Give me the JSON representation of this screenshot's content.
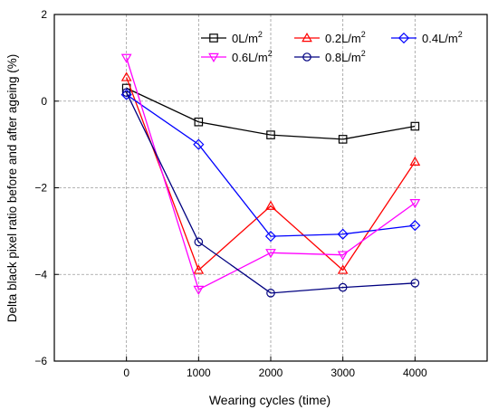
{
  "chart_data": {
    "type": "line",
    "xlabel": "Wearing cycles (time)",
    "ylabel": "Delta black pixel ratio before and after ageing (%)",
    "xlim": [
      -1000,
      5000
    ],
    "ylim": [
      -6,
      2
    ],
    "x_ticks": [
      0,
      1000,
      2000,
      3000,
      4000
    ],
    "y_ticks": [
      2,
      0,
      -2,
      -4,
      -6
    ],
    "grid": true,
    "legend_position": "top",
    "x": [
      0,
      1000,
      2000,
      3000,
      4000
    ],
    "series": [
      {
        "name": "0L/m",
        "sup": "2",
        "color": "#000000",
        "marker": "square",
        "values": [
          0.3,
          -0.48,
          -0.78,
          -0.88,
          -0.58
        ]
      },
      {
        "name": "0.2L/m",
        "sup": "2",
        "color": "#ff0000",
        "marker": "triangle-up",
        "values": [
          0.55,
          -3.9,
          -2.42,
          -3.9,
          -1.4
        ]
      },
      {
        "name": "0.4L/m",
        "sup": "2",
        "color": "#0000ff",
        "marker": "diamond",
        "values": [
          0.15,
          -1.0,
          -3.12,
          -3.07,
          -2.87
        ]
      },
      {
        "name": "0.6L/m",
        "sup": "2",
        "color": "#ff00ff",
        "marker": "triangle-down",
        "values": [
          1.0,
          -4.35,
          -3.5,
          -3.55,
          -2.35
        ]
      },
      {
        "name": "0.8L/m",
        "sup": "2",
        "color": "#000080",
        "marker": "circle",
        "values": [
          0.2,
          -3.25,
          -4.43,
          -4.3,
          -4.2
        ]
      }
    ]
  }
}
